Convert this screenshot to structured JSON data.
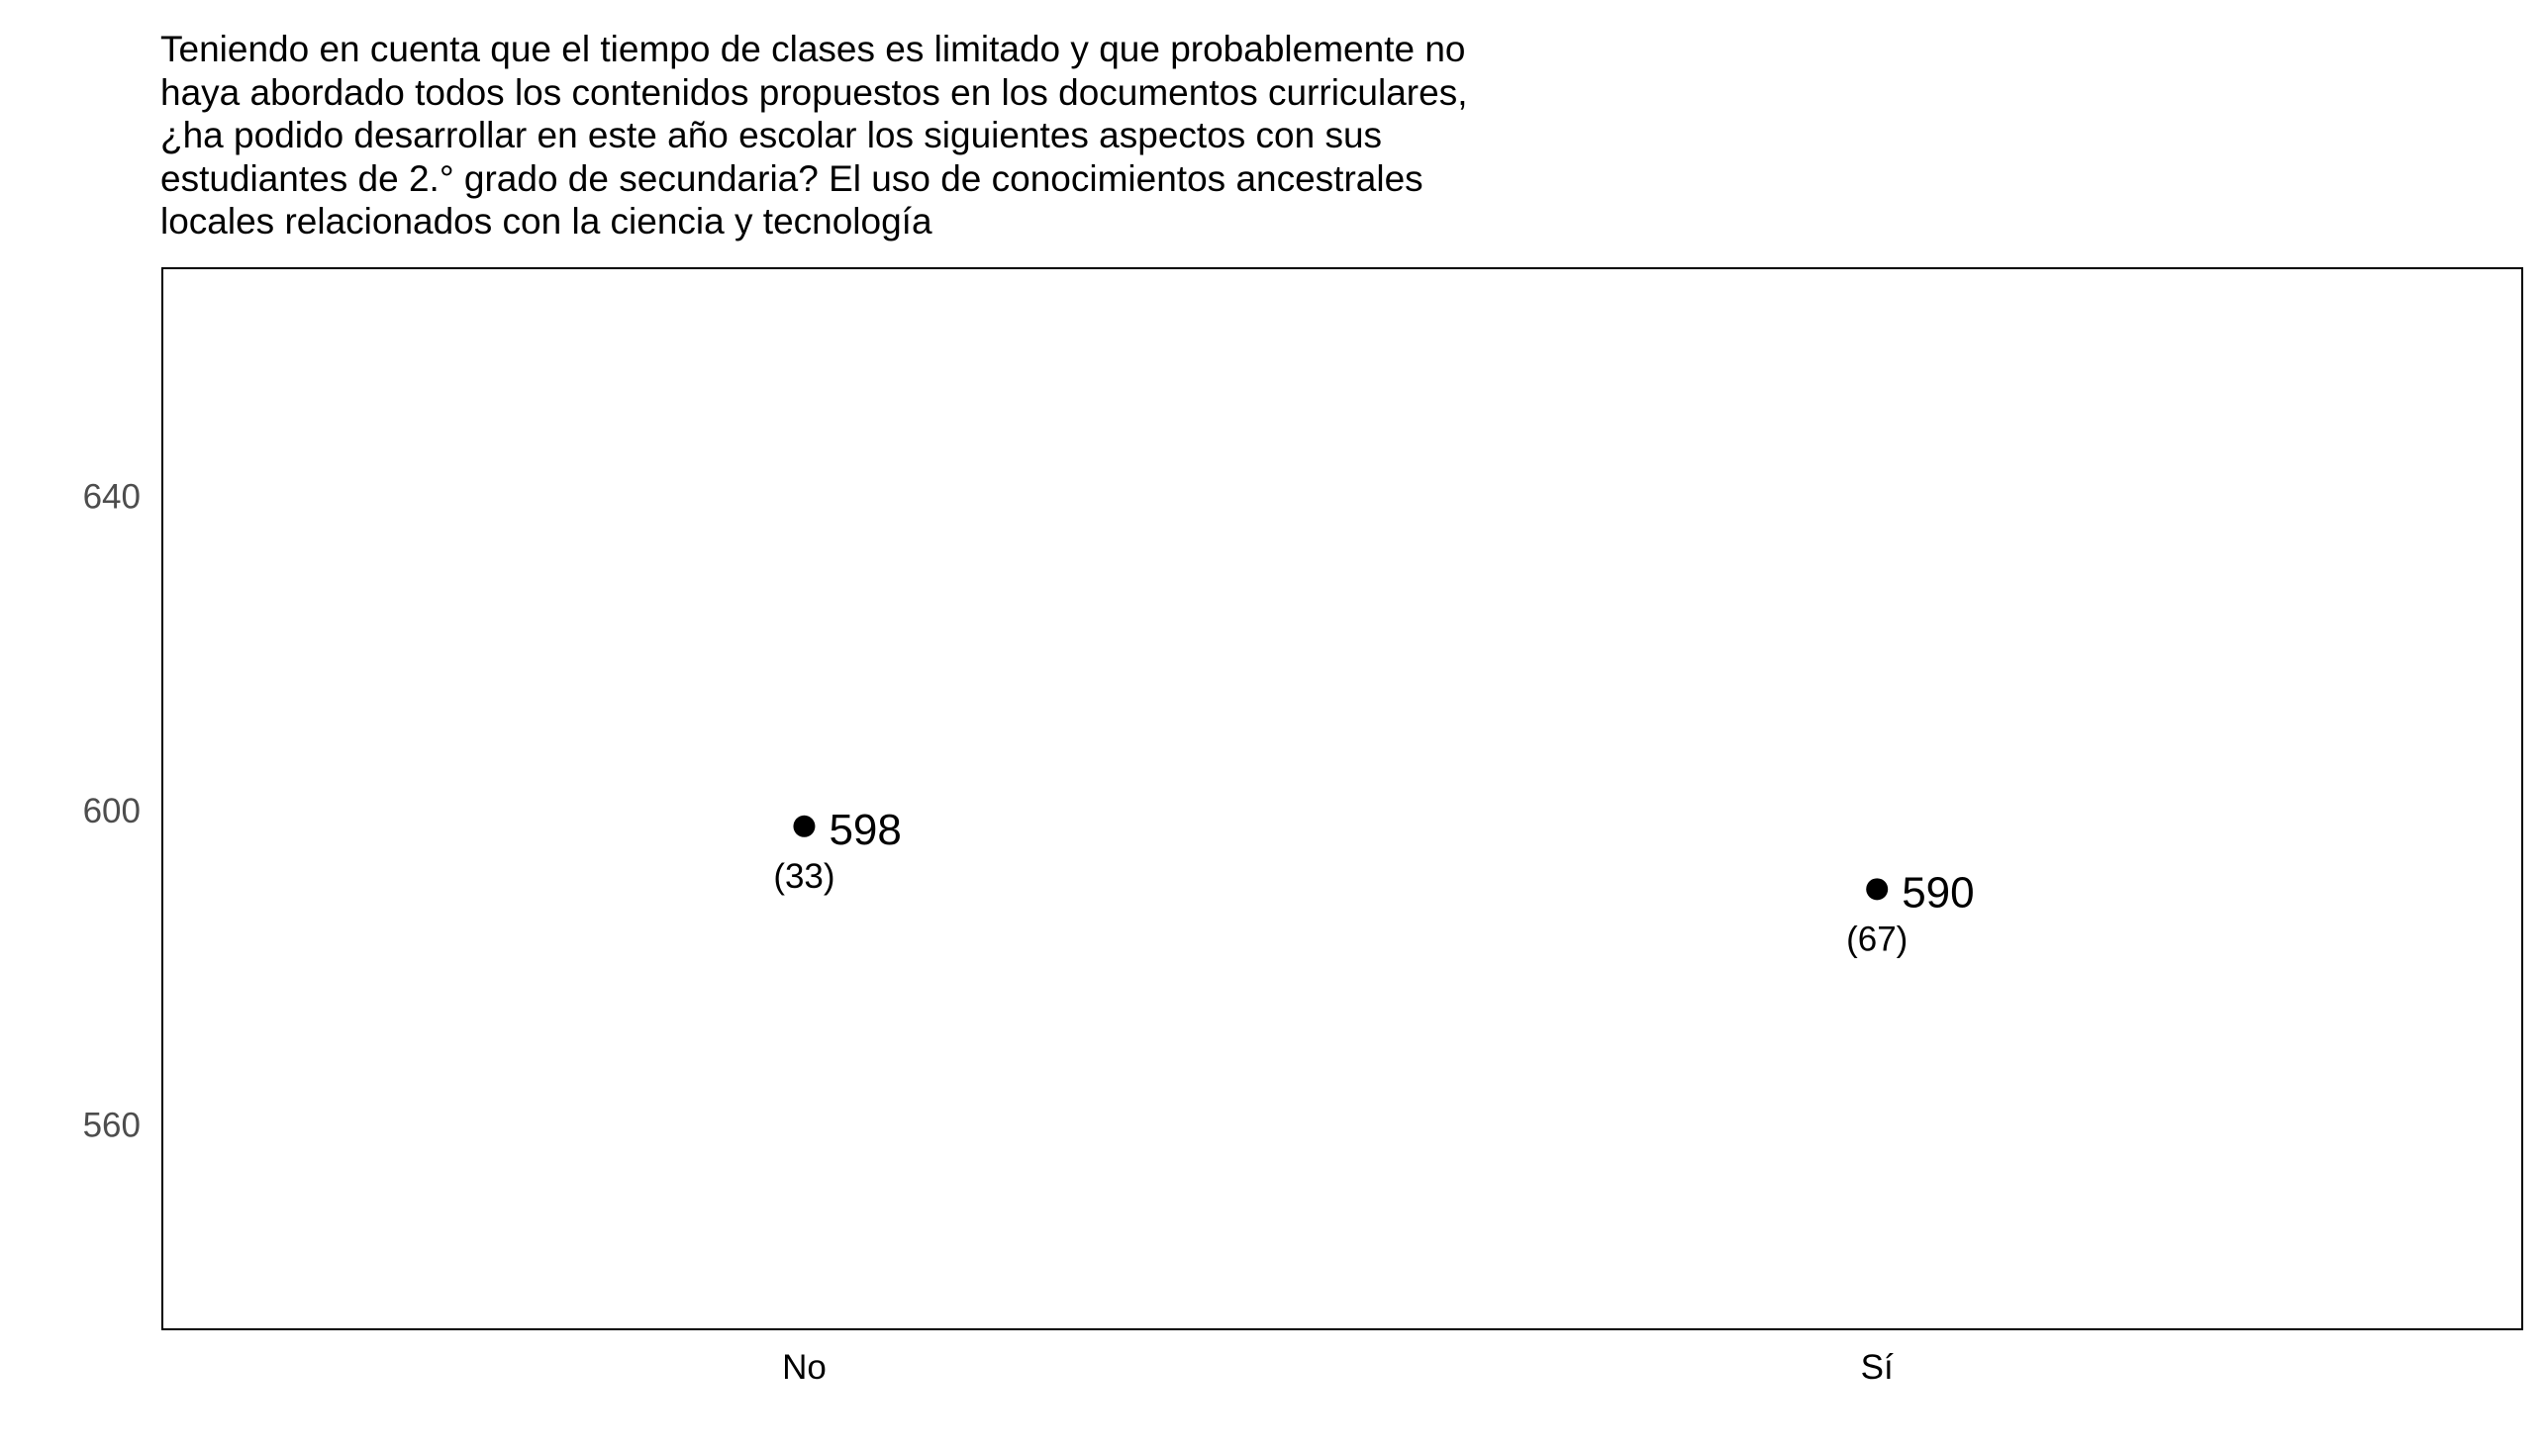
{
  "chart_data": {
    "type": "scatter",
    "title": "Teniendo en cuenta que el tiempo de clases es limitado y que probablemente no haya abordado todos los contenidos propuestos en los documentos curriculares, ¿ha podido desarrollar en este año escolar los siguientes aspectos con sus estudiantes de 2.° grado de secundaria? El uso de conocimientos ancestrales locales relacionados con la ciencia y tecnología",
    "title_lines": [
      "Teniendo en cuenta que el tiempo de clases es limitado y que probablemente no",
      "haya abordado todos los contenidos propuestos en los documentos curriculares,",
      "¿ha podido desarrollar en este año escolar los siguientes aspectos con sus",
      "estudiantes de 2.° grado de secundaria? El uso de conocimientos ancestrales",
      "locales relacionados con la ciencia y tecnología"
    ],
    "xlabel": "",
    "ylabel": "",
    "categories": [
      "No",
      "Sí"
    ],
    "values": [
      598,
      590
    ],
    "value_labels": [
      "598",
      "590"
    ],
    "se_labels": [
      "(33)",
      "(67)"
    ],
    "ylim": [
      534,
      669
    ],
    "yticks": [
      560,
      600,
      640
    ],
    "ytick_labels": [
      "560",
      "600",
      "640"
    ],
    "grid": false,
    "legend": "none",
    "point_color": "#000000",
    "frame_color": "#000000"
  }
}
